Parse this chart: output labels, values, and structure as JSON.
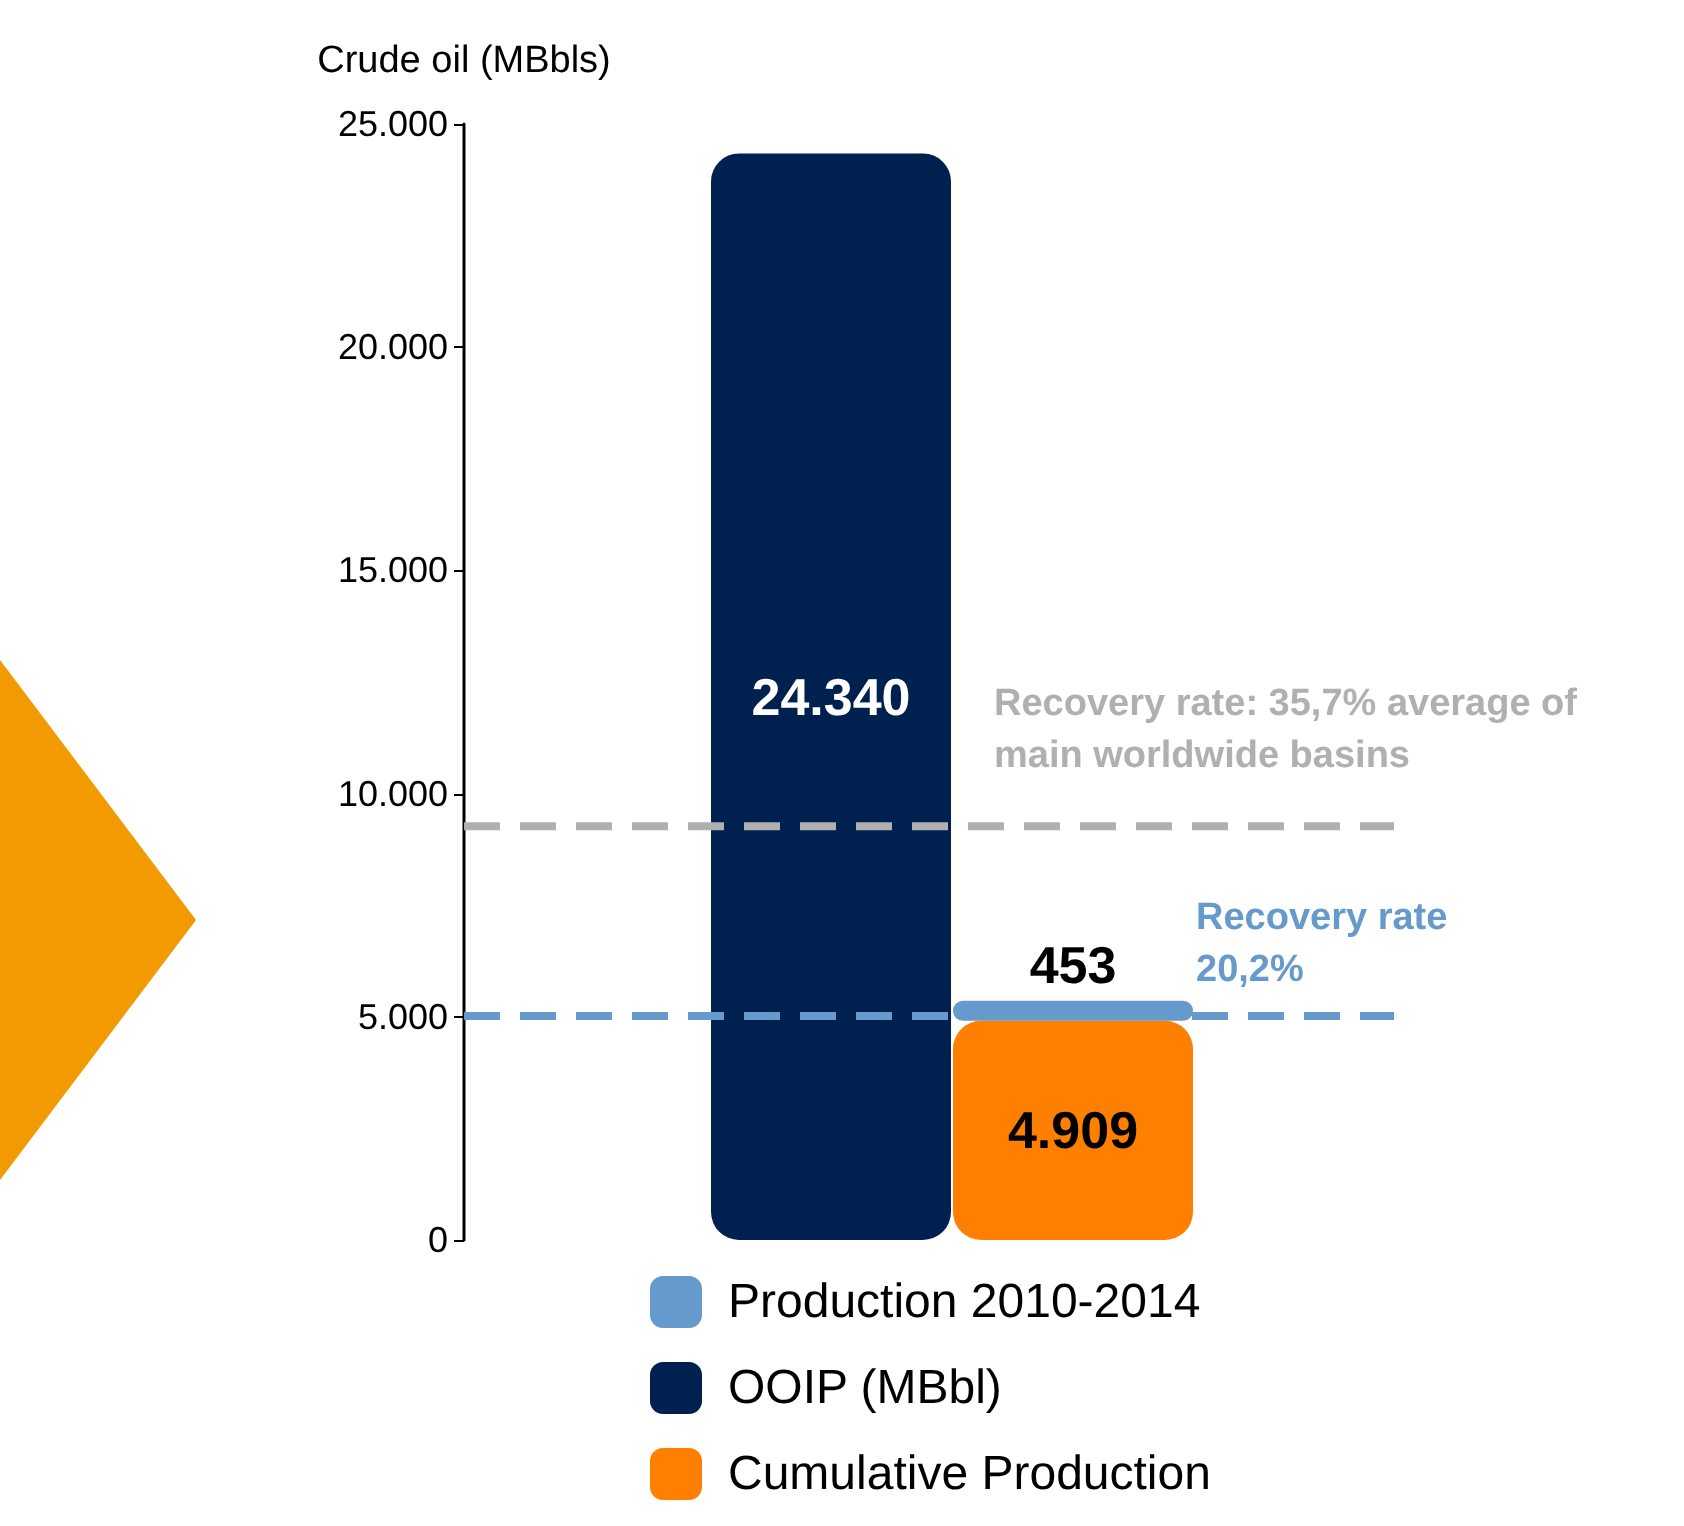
{
  "chart_data": {
    "type": "bar",
    "ylabel": "Crude oil (MBbls)",
    "categories": [
      null,
      null
    ],
    "stacked": true,
    "series": [
      {
        "name": "Cumulative Production",
        "color": "#ff7f00",
        "values": [
          null,
          4909
        ],
        "value_labels": [
          null,
          "4.909"
        ]
      },
      {
        "name": "OOIP (MBbl)",
        "color": "#002050",
        "values": [
          24340,
          null
        ],
        "value_labels": [
          "24.340",
          null
        ]
      },
      {
        "name": "Production 2010-2014",
        "color": "#6699cc",
        "values": [
          null,
          453
        ],
        "value_labels": [
          null,
          "453"
        ]
      }
    ],
    "ylim": [
      0,
      25000
    ],
    "yticks": [
      {
        "value": 0,
        "label": "0"
      },
      {
        "value": 5000,
        "label": "5.000"
      },
      {
        "value": 10000,
        "label": "10.000"
      },
      {
        "value": 15000,
        "label": "15.000"
      },
      {
        "value": 20000,
        "label": "20.000"
      },
      {
        "value": 25000,
        "label": "25.000"
      }
    ],
    "grid": false,
    "legend": "bottom",
    "annotations": [
      "Recovery rate: 35,7% average of main worldwide basins",
      "Recovery rate 20,2%"
    ],
    "ref_lines": [
      {
        "axis": "y",
        "value": 9270,
        "color": "#b0b0b0",
        "line_style": "dashed"
      },
      {
        "axis": "y",
        "value": 5020,
        "color": "#6699cc",
        "line_style": "dashed"
      }
    ]
  }
}
